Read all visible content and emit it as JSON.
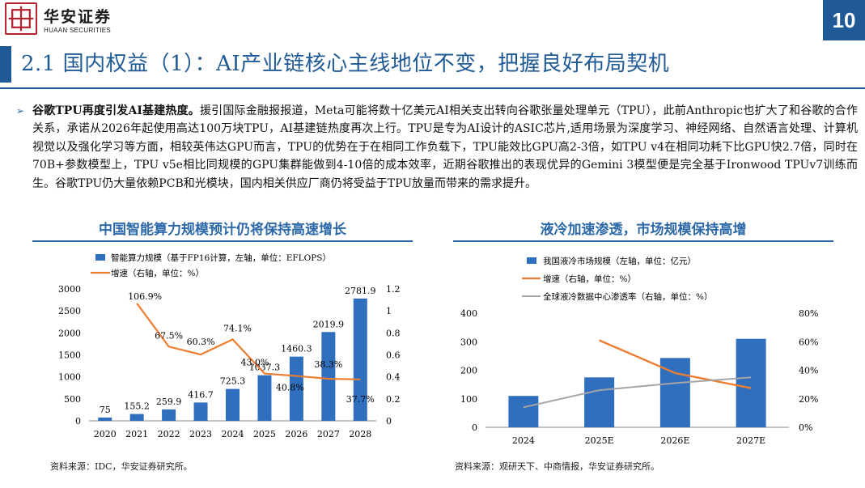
{
  "header": {
    "logo_cn": "华安证券",
    "logo_en": "HUAAN SECURITIES",
    "page_number": "10",
    "title": "2.1 国内权益（1）：AI产业链核心主线地位不变，把握良好布局契机"
  },
  "bullet": {
    "head": "谷歌TPU再度引发AI基建热度。",
    "body": "援引国际金融报报道，Meta可能将数十亿美元AI相关支出转向谷歌张量处理单元（TPU），此前Anthropic也扩大了和谷歌的合作关系，承诺从2026年起使用高达100万块TPU，AI基建链热度再次上行。TPU是专为AI设计的ASIC芯片,适用场景为深度学习、神经网络、自然语言处理、计算机视觉以及强化学习等方面，相较英伟达GPU而言，TPU的优势在于在相同工作负载下，TPU能效比GPU高2-3倍，如TPU v4在相同功耗下比GPU快2.7倍，同时在70B+参数模型上，TPU v5e相比同规模的GPU集群能做到4-10倍的成本效率，近期谷歌推出的表现优异的Gemini 3模型便是完全基于Ironwood TPUv7训练而生。谷歌TPU仍大量依赖PCB和光模块，国内相关供应厂商仍将受益于TPU放量而带来的需求提升。"
  },
  "colors": {
    "brand_blue": "#1f5a96",
    "bar_blue": "#2f6fbe",
    "line_orange": "#ed7d31",
    "line_gray": "#a5a5a5"
  },
  "chart_data": [
    {
      "type": "bar",
      "title": "中国智能算力规模预计仍将保持高速增长",
      "categories": [
        "2020",
        "2021",
        "2022",
        "2023",
        "2024",
        "2025",
        "2026",
        "2027",
        "2028"
      ],
      "series": [
        {
          "name": "智能算力规模（基于FP16计算，左轴，单位：EFLOPS）",
          "kind": "bar",
          "axis": "left",
          "values": [
            75,
            155.2,
            259.9,
            416.7,
            725.3,
            1037.3,
            1460.3,
            2019.9,
            2781.9
          ],
          "labels": [
            "75",
            "155.2",
            "259.9",
            "416.7",
            "725.3",
            "1037.3",
            "1460.3",
            "2019.9",
            "2781.9"
          ]
        },
        {
          "name": "增速（右轴，单位：%）",
          "kind": "line",
          "axis": "right",
          "values": [
            null,
            1.069,
            0.675,
            0.603,
            0.741,
            0.43,
            0.408,
            0.383,
            0.377
          ],
          "labels": [
            "",
            "106.9%",
            "67.5%",
            "60.3%",
            "74.1%",
            "43.0%",
            "40.8%",
            "38.3%",
            "37.7%"
          ]
        }
      ],
      "ylim_left": [
        0,
        3000
      ],
      "yticks_left": [
        "0",
        "500",
        "1000",
        "1500",
        "2000",
        "2500",
        "3000"
      ],
      "ylim_right": [
        0,
        1.2
      ],
      "yticks_right": [
        "0",
        "0.2",
        "0.4",
        "0.6",
        "0.8",
        "1",
        "1.2"
      ],
      "legend": "top-left",
      "source": "资料来源：IDC，华安证券研究所。"
    },
    {
      "type": "bar",
      "title": "液冷加速渗透，市场规模保持高增",
      "categories": [
        "2024",
        "2025E",
        "2026E",
        "2027E"
      ],
      "series": [
        {
          "name": "我国液冷市场规模（左轴，单位：亿元）",
          "kind": "bar",
          "axis": "left",
          "values": [
            110,
            175,
            243,
            310
          ]
        },
        {
          "name": "增速（右轴，单位：%）",
          "kind": "line",
          "axis": "right",
          "values": [
            null,
            0.61,
            0.38,
            0.275
          ]
        },
        {
          "name": "全球液冷数据中心渗透率（右轴，单位：%）",
          "kind": "line",
          "axis": "right",
          "values": [
            0.14,
            0.26,
            0.31,
            0.35
          ]
        }
      ],
      "ylim_left": [
        0,
        400
      ],
      "yticks_left": [
        "0",
        "100",
        "200",
        "300",
        "400"
      ],
      "ylim_right": [
        0,
        0.8
      ],
      "yticks_right": [
        "0%",
        "20%",
        "40%",
        "60%",
        "80%"
      ],
      "legend": "top-left",
      "source": "资料来源：观研天下、中商情报，华安证券研究所。"
    }
  ]
}
